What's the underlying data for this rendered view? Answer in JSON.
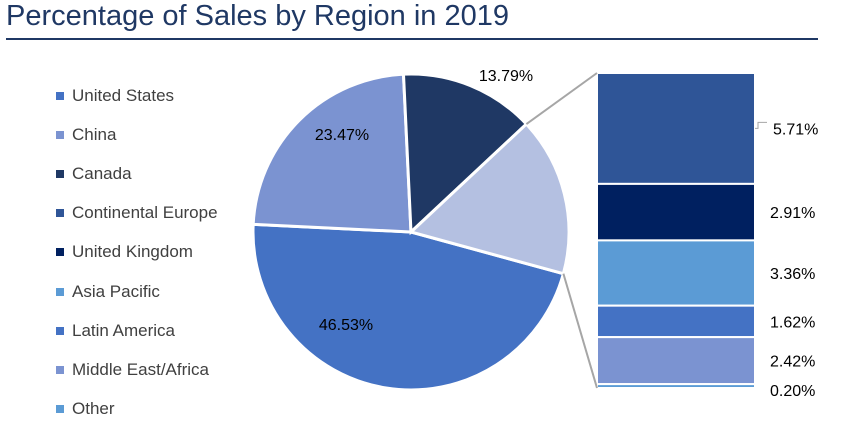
{
  "chart_data": {
    "type": "bar-of-pie",
    "title": "Percentage of Sales by Region in 2019",
    "legend_position": "left",
    "legend": [
      {
        "name": "United States",
        "color": "#4472c4"
      },
      {
        "name": "China",
        "color": "#7b93d1"
      },
      {
        "name": "Canada",
        "color": "#1f3864"
      },
      {
        "name": "Continental Europe",
        "color": "#2f5597"
      },
      {
        "name": "United Kingdom",
        "color": "#002060"
      },
      {
        "name": "Asia Pacific",
        "color": "#5b9bd5"
      },
      {
        "name": "Latin America",
        "color": "#4472c4"
      },
      {
        "name": "Middle East/Africa",
        "color": "#7b93d1"
      },
      {
        "name": "Other",
        "color": "#5b9bd5"
      }
    ],
    "pie": [
      {
        "name": "United States",
        "value": 46.53,
        "label": "46.53%",
        "color": "#4472c4",
        "label_color": "#ffffff"
      },
      {
        "name": "China",
        "value": 23.47,
        "label": "23.47%",
        "color": "#7b93d1",
        "label_color": "#000000"
      },
      {
        "name": "Canada",
        "value": 13.79,
        "label": "13.79%",
        "color": "#1f3864",
        "label_color": "#000000"
      },
      {
        "name": "Other (stacked bar)",
        "value": 16.22,
        "label": "",
        "color": "#b4c0e1",
        "label_color": "#000000"
      }
    ],
    "bar": [
      {
        "name": "Continental Europe",
        "value": 5.71,
        "label": "5.71%",
        "color": "#2f5597"
      },
      {
        "name": "United Kingdom",
        "value": 2.91,
        "label": "2.91%",
        "color": "#002060"
      },
      {
        "name": "Asia Pacific",
        "value": 3.36,
        "label": "3.36%",
        "color": "#5b9bd5"
      },
      {
        "name": "Latin America",
        "value": 1.62,
        "label": "1.62%",
        "color": "#4472c4"
      },
      {
        "name": "Middle East/Africa",
        "value": 2.42,
        "label": "2.42%",
        "color": "#7b93d1"
      },
      {
        "name": "Other",
        "value": 0.2,
        "label": "0.20%",
        "color": "#5b9bd5"
      }
    ]
  }
}
